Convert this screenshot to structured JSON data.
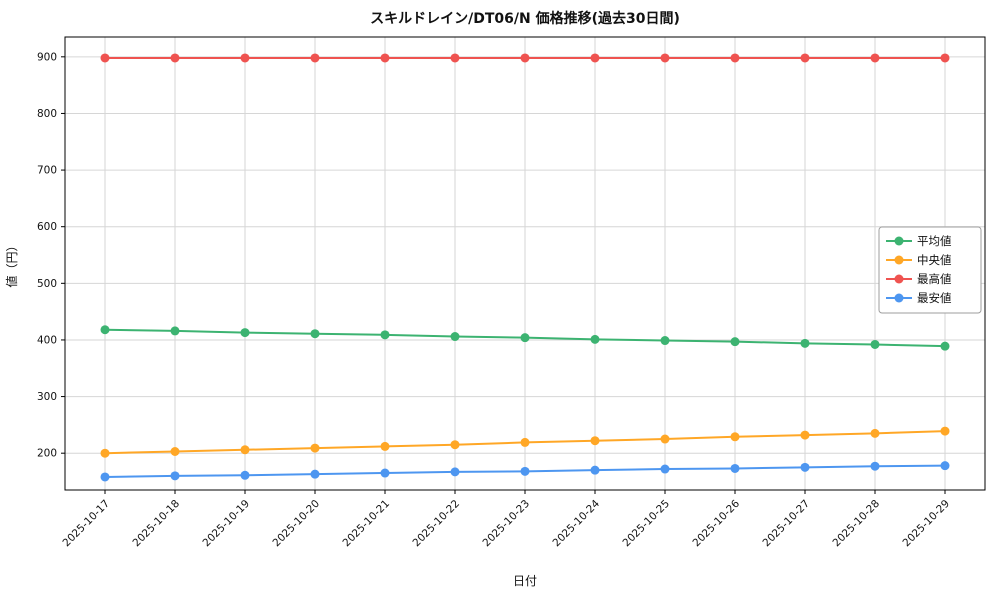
{
  "chart_data": {
    "type": "line",
    "title": "スキルドレイン/DT06/N 価格推移(過去30日間)",
    "xlabel": "日付",
    "ylabel": "値（円）",
    "x": [
      "2025-10-17",
      "2025-10-18",
      "2025-10-19",
      "2025-10-20",
      "2025-10-21",
      "2025-10-22",
      "2025-10-23",
      "2025-10-24",
      "2025-10-25",
      "2025-10-26",
      "2025-10-27",
      "2025-10-28",
      "2025-10-29"
    ],
    "series": [
      {
        "key": "average",
        "name": "平均値",
        "color": "#3CB371",
        "values": [
          418,
          416,
          413,
          411,
          409,
          406,
          404,
          401,
          399,
          397,
          394,
          392,
          389
        ]
      },
      {
        "key": "median",
        "name": "中央値",
        "color": "#FFA726",
        "values": [
          200,
          203,
          206,
          209,
          212,
          215,
          219,
          222,
          225,
          229,
          232,
          235,
          239
        ]
      },
      {
        "key": "max",
        "name": "最高値",
        "color": "#EF5350",
        "values": [
          898,
          898,
          898,
          898,
          898,
          898,
          898,
          898,
          898,
          898,
          898,
          898,
          898
        ]
      },
      {
        "key": "min",
        "name": "最安値",
        "color": "#4D96F0",
        "values": [
          158,
          160,
          161,
          163,
          165,
          167,
          168,
          170,
          172,
          173,
          175,
          177,
          178
        ]
      }
    ],
    "yticks": [
      200,
      300,
      400,
      500,
      600,
      700,
      800,
      900
    ],
    "ylim": [
      135,
      935
    ],
    "grid": true,
    "grid_color": "#d6d6d6",
    "legend_position": "right-center",
    "legend_labels": [
      "平均値",
      "中央値",
      "最高値",
      "最安値"
    ]
  }
}
